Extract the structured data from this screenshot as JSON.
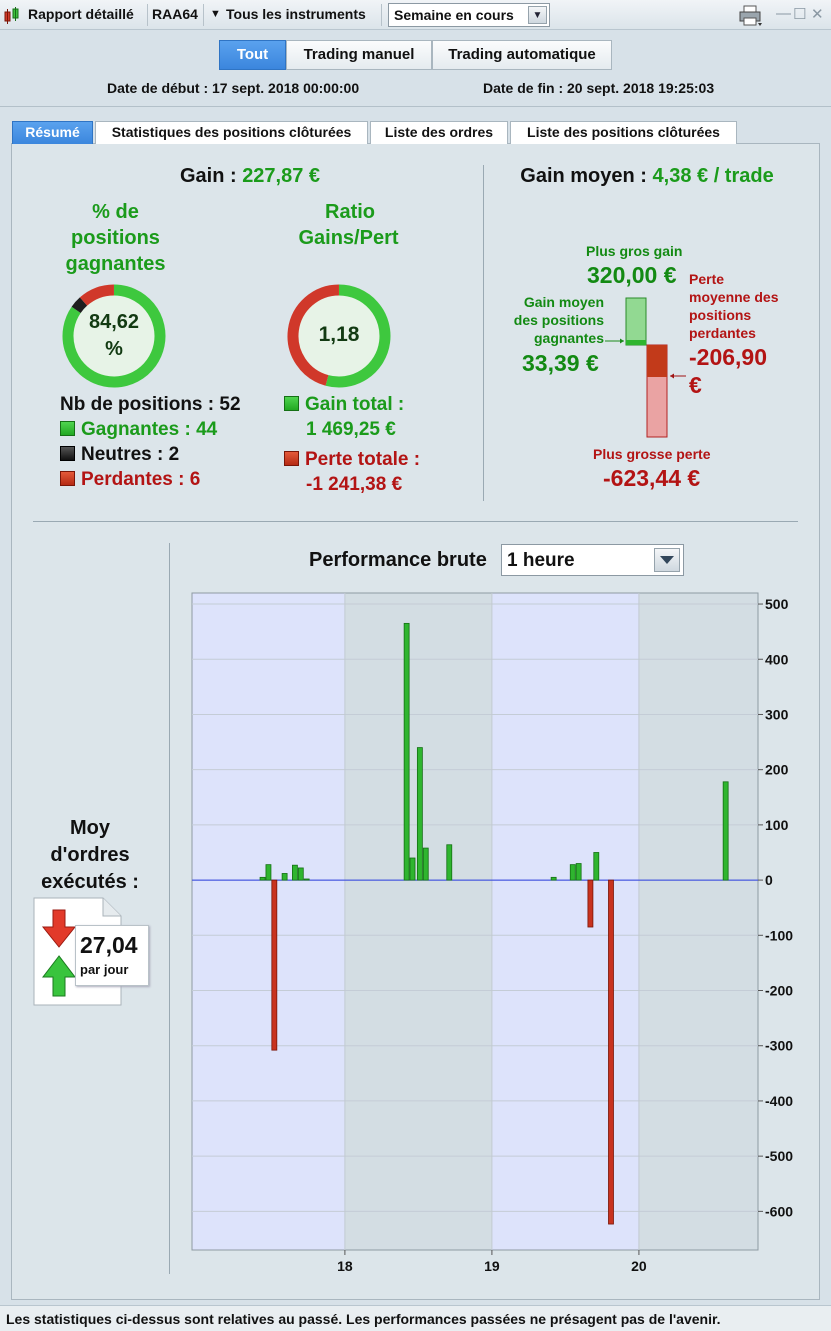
{
  "toolbar": {
    "report_label": "Rapport détaillé",
    "account": "RAA64",
    "instruments": "Tous les instruments",
    "period": "Semaine en cours"
  },
  "filters": {
    "tabs": [
      "Tout",
      "Trading manuel",
      "Trading automatique"
    ],
    "active": 0
  },
  "dates": {
    "start": "Date de début : 17 sept. 2018 00:00:00",
    "end": "Date de fin : 20 sept. 2018 19:25:03"
  },
  "tabs": [
    "Résumé",
    "Statistiques des positions clôturées",
    "Liste des ordres",
    "Liste des positions clôturées"
  ],
  "summary": {
    "gain_label": "Gain :",
    "gain_value": "227,87 €",
    "pct_title_1": "% de",
    "pct_title_2": "positions",
    "pct_title_3": "gagnantes",
    "pct_value_1": "84,62",
    "pct_value_2": "%",
    "pct_fraction": 0.8462,
    "neutral_fraction": 0.0385,
    "ratio_title_1": "Ratio",
    "ratio_title_2": "Gains/Pert",
    "ratio_value": "1,18",
    "ratio_fraction": 0.542,
    "nb_positions": "Nb de positions : 52",
    "winners": "Gagnantes : 44",
    "neutrals": "Neutres : 2",
    "losers": "Perdantes : 6",
    "total_gain_label": "Gain total :",
    "total_gain_value": "1 469,25 €",
    "total_loss_label": "Perte totale :",
    "total_loss_value": "-1 241,38 €"
  },
  "average": {
    "label": "Gain moyen :",
    "value": "4,38 € / trade",
    "biggest_gain_label": "Plus gros gain",
    "biggest_gain_value": "320,00 €",
    "avg_win_label_1": "Gain moyen",
    "avg_win_label_2": "des positions",
    "avg_win_label_3": "gagnantes",
    "avg_win_value": "33,39 €",
    "avg_loss_label_1": "Perte",
    "avg_loss_label_2": "moyenne des",
    "avg_loss_label_3": "positions",
    "avg_loss_label_4": "perdantes",
    "avg_loss_value_1": "-206,90",
    "avg_loss_value_2": "€",
    "biggest_loss_label": "Plus grosse perte",
    "biggest_loss_value": "-623,44 €"
  },
  "orders": {
    "title_1": "Moy",
    "title_2": "d'ordres",
    "title_3": "exécutés :",
    "value": "27,04",
    "unit": "par jour"
  },
  "performance": {
    "title": "Performance brute",
    "resolution": "1 heure"
  },
  "chart_data": {
    "type": "bar",
    "x_ticks": [
      "18",
      "19",
      "20"
    ],
    "ylim": [
      -670,
      520
    ],
    "yticks": [
      500,
      400,
      300,
      200,
      100,
      0,
      -100,
      -200,
      -300,
      -400,
      -500,
      -600
    ],
    "colors": {
      "positive": "#2fb52f",
      "negative": "#c8321e",
      "band_a": "#dde3fb",
      "band_b": "#d3dde3"
    },
    "x": [
      17.44,
      17.48,
      17.52,
      17.59,
      17.66,
      17.7,
      17.74,
      18.42,
      18.46,
      18.51,
      18.55,
      18.71,
      19.42,
      19.55,
      19.59,
      19.67,
      19.71,
      19.81,
      20.59
    ],
    "values": [
      5,
      28,
      -308,
      12,
      27,
      22,
      2,
      465,
      40,
      240,
      58,
      64,
      5,
      28,
      30,
      -85,
      50,
      -623,
      178
    ]
  },
  "footer": "Les statistiques ci-dessus sont relatives au passé. Les performances passées ne présagent pas de l'avenir."
}
